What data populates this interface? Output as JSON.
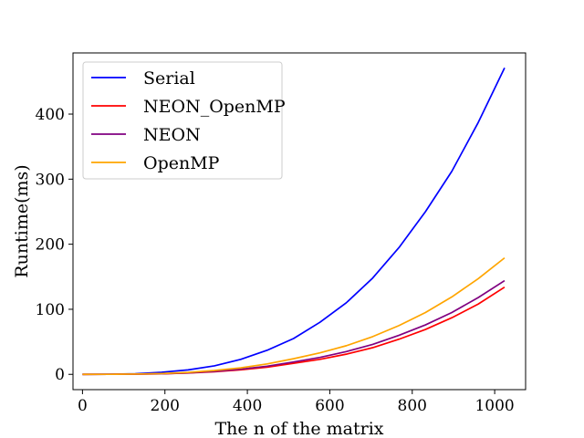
{
  "chart_data": {
    "type": "line",
    "title": "",
    "xlabel": "The n of the matrix",
    "ylabel": "Runtime(ms)",
    "xlim": [
      -23,
      1075
    ],
    "ylim": [
      -23.5,
      494
    ],
    "xticks": [
      0,
      200,
      400,
      600,
      800,
      1000
    ],
    "yticks": [
      0,
      100,
      200,
      300,
      400
    ],
    "grid": false,
    "legend_position": "upper-left",
    "x": [
      0,
      64,
      128,
      192,
      256,
      320,
      384,
      448,
      512,
      576,
      640,
      704,
      768,
      832,
      896,
      960,
      1024
    ],
    "series": [
      {
        "name": "Serial",
        "color": "#0000ff",
        "values": [
          0,
          0.2,
          0.9,
          3.2,
          6.8,
          13,
          23,
          37,
          55,
          80,
          110,
          148,
          195,
          250,
          312,
          387,
          471
        ]
      },
      {
        "name": "NEON_OpenMP",
        "color": "#ff0000",
        "values": [
          0,
          0.1,
          0.3,
          0.8,
          2,
          4,
          7,
          11,
          17,
          23,
          31,
          41,
          54,
          69,
          87,
          108,
          134
        ]
      },
      {
        "name": "NEON",
        "color": "#800080",
        "values": [
          0,
          0.1,
          0.3,
          0.9,
          2.2,
          4.5,
          8,
          12.5,
          19,
          26,
          35,
          46,
          60,
          76,
          95,
          118,
          144
        ]
      },
      {
        "name": "OpenMP",
        "color": "#ffa500",
        "values": [
          0,
          0.1,
          0.4,
          1.2,
          3,
          6,
          10,
          16,
          24,
          33,
          44,
          58,
          75,
          95,
          119,
          147,
          179
        ]
      }
    ]
  }
}
